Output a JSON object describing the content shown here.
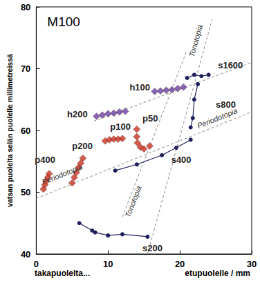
{
  "chart_data": {
    "type": "scatter",
    "title": "M100",
    "y_label": "vatsan puolelta selän puolelle millimetreissä",
    "x_label_left": "takapuolelta...",
    "x_label_right": "etupuolelle / mm",
    "xlim": [
      0,
      30
    ],
    "xticks": [
      0,
      10,
      20,
      30
    ],
    "ylim": [
      40,
      80
    ],
    "yticks": [
      40,
      50,
      60,
      70,
      80
    ],
    "grid": false,
    "series": [
      {
        "name": "h200",
        "type": "scatter",
        "marker": "diamond",
        "color": "#6a3fa0",
        "x": [
          8.4,
          9.2,
          10.0,
          10.8,
          11.6,
          12.4
        ],
        "y": [
          62.3,
          62.5,
          62.7,
          62.8,
          63.0,
          63.1
        ],
        "label_at": [
          4.3,
          62.6
        ]
      },
      {
        "name": "h100",
        "type": "scatter",
        "marker": "diamond",
        "color": "#6a3fa0",
        "x": [
          16.5,
          17.3,
          18.1,
          18.9,
          19.7,
          20.5
        ],
        "y": [
          66.3,
          66.4,
          66.5,
          66.6,
          66.8,
          67.0
        ],
        "label_at": [
          13.0,
          67.0
        ]
      },
      {
        "name": "p400",
        "type": "scatter",
        "marker": "diamond",
        "color": "#c8321e",
        "x": [
          1.0,
          1.2,
          1.4,
          1.6,
          1.8
        ],
        "y": [
          50.5,
          51.2,
          51.8,
          52.4,
          53.0
        ],
        "label_at": [
          -0.2,
          55.3
        ]
      },
      {
        "name": "p200",
        "type": "scatter",
        "marker": "diamond",
        "color": "#c8321e",
        "x": [
          5.0,
          5.3,
          5.6,
          5.9,
          6.2,
          6.5
        ],
        "y": [
          51.5,
          52.4,
          53.2,
          54.0,
          54.7,
          55.5
        ],
        "label_at": [
          5.0,
          57.5
        ]
      },
      {
        "name": "p100",
        "type": "scatter",
        "marker": "diamond",
        "color": "#c8321e",
        "x": [
          9.6,
          10.2,
          10.8,
          11.4,
          12.0
        ],
        "y": [
          58.3,
          58.5,
          58.6,
          58.6,
          58.7
        ],
        "label_at": [
          10.3,
          60.6
        ]
      },
      {
        "name": "p50",
        "type": "scatter",
        "marker": "diamond",
        "color": "#c8321e",
        "x": [
          14.0,
          14.0,
          14.1,
          14.5,
          15.0,
          15.8
        ],
        "y": [
          60.2,
          59.0,
          58.0,
          57.3,
          57.0,
          57.5
        ],
        "label_at": [
          14.8,
          62.0
        ]
      },
      {
        "name": "s1600",
        "type": "line",
        "marker": "circle",
        "line_style": "solid",
        "color": "#1f1f5c",
        "x": [
          21.0,
          22.0,
          23.0,
          24.0
        ],
        "y": [
          68.5,
          69.0,
          68.8,
          69.0
        ],
        "label_at": [
          25.3,
          70.6
        ]
      },
      {
        "name": "s800",
        "type": "line",
        "marker": "circle",
        "line_style": "solid",
        "color": "#1f1f5c",
        "x": [
          22.5,
          22.0,
          21.8,
          21.5
        ],
        "y": [
          67.5,
          65.0,
          62.0,
          60.5
        ],
        "label_at": [
          25.0,
          64.2
        ]
      },
      {
        "name": "s400",
        "type": "line",
        "marker": "circle",
        "line_style": "solid",
        "color": "#1f1f5c",
        "x": [
          11.0,
          14.0,
          17.5,
          19.5,
          21.5
        ],
        "y": [
          53.5,
          54.5,
          56.0,
          57.2,
          58.5
        ],
        "label_at": [
          18.8,
          55.2
        ]
      },
      {
        "name": "s200",
        "type": "line",
        "marker": "circle",
        "line_style": "solid",
        "color": "#1f1f5c",
        "x": [
          6.0,
          7.8,
          8.2,
          10.0,
          12.0,
          15.5
        ],
        "y": [
          45.0,
          43.8,
          43.5,
          43.0,
          43.2,
          42.8
        ],
        "label_at": [
          14.8,
          40.9
        ]
      }
    ],
    "guides": [
      {
        "line_style": "dashed",
        "color": "#888888",
        "x": [
          15.5,
          24.5
        ],
        "y": [
          40.0,
          78.0
        ]
      },
      {
        "line_style": "dashed",
        "color": "#888888",
        "x": [
          12.0,
          21.0
        ],
        "y": [
          46.0,
          73.0
        ]
      },
      {
        "line_style": "dashed",
        "color": "#888888",
        "x": [
          8.0,
          30.0
        ],
        "y": [
          61.5,
          71.0
        ]
      },
      {
        "line_style": "dashed",
        "color": "#888888",
        "x": [
          0.0,
          30.0
        ],
        "y": [
          49.0,
          63.0
        ]
      }
    ],
    "annotations": [
      {
        "text": "Tonotopia",
        "x": 22.2,
        "y": 74.5,
        "along": 0
      },
      {
        "text": "Tonotopia",
        "x": 13.5,
        "y": 48.5,
        "along": 1
      },
      {
        "text": "Periodotopia",
        "x": 3.6,
        "y": 52.9,
        "along": 3
      },
      {
        "text": "Periodotopia",
        "x": 25.2,
        "y": 62.0,
        "along": 3
      }
    ]
  }
}
